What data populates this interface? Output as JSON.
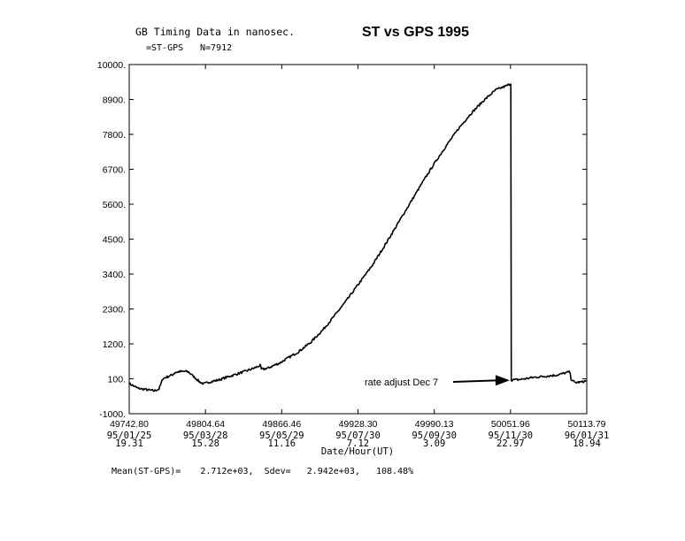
{
  "header": {
    "dataset_title": "GB Timing Data in nanosec.",
    "series_label": "=ST-GPS",
    "count_label": "N=7912",
    "chart_title": "ST vs GPS 1995"
  },
  "footer": {
    "stats_label": "Mean(ST-GPS)=",
    "stats_mean": "2.712e+03,",
    "stats_sdev_label": "Sdev=",
    "stats_sdev": "2.942e+03,",
    "stats_pct": "108.48%"
  },
  "chart_data": {
    "type": "line",
    "title": "ST vs GPS 1995",
    "xlabel": "Date/Hour(UT)",
    "ylabel": "",
    "xlim": [
      49742.8,
      50113.79
    ],
    "ylim": [
      -1000,
      10000
    ],
    "grid": false,
    "y_ticks": [
      "-1000.",
      "100.",
      "1200.",
      "2300.",
      "3400.",
      "4500.",
      "5600.",
      "6700.",
      "7800.",
      "8900.",
      "10000."
    ],
    "y_tick_values": [
      -1000,
      100,
      1200,
      2300,
      3400,
      4500,
      5600,
      6700,
      7800,
      8900,
      10000
    ],
    "x_ticks": [
      {
        "value": 49742.8,
        "mjd": "49742.80",
        "date": "95/01/25",
        "hour": "19.31"
      },
      {
        "value": 49804.64,
        "mjd": "49804.64",
        "date": "95/03/28",
        "hour": "15.28"
      },
      {
        "value": 49866.46,
        "mjd": "49866.46",
        "date": "95/05/29",
        "hour": "11.16"
      },
      {
        "value": 49928.3,
        "mjd": "49928.30",
        "date": "95/07/30",
        "hour": "7.12"
      },
      {
        "value": 49990.13,
        "mjd": "49990.13",
        "date": "95/09/30",
        "hour": "3.09"
      },
      {
        "value": 50051.96,
        "mjd": "50051.96",
        "date": "95/11/30",
        "hour": "22.97"
      },
      {
        "value": 50113.79,
        "mjd": "50113.79",
        "date": "96/01/31",
        "hour": "18.94"
      }
    ],
    "series": [
      {
        "x": [
          49742.8,
          49750,
          49758,
          49763,
          49767,
          49770,
          49771,
          49778,
          49780,
          49785,
          49790,
          49791,
          49800,
          49803,
          49808,
          49815,
          49822,
          49830,
          49838,
          49845,
          49849,
          49850,
          49855,
          49860,
          49865,
          49870,
          49880,
          49890,
          49900,
          49910,
          49920,
          49930,
          49940,
          49950,
          49960,
          49970,
          49980,
          49990,
          50000,
          50010,
          50020,
          50030,
          50040,
          50050,
          50051,
          50052.2,
          50052.6,
          50060,
          50070,
          50080,
          50090,
          50100,
          50101,
          50104,
          50110,
          50113.79
        ],
        "y": [
          -50,
          -200,
          -250,
          -280,
          -220,
          100,
          120,
          230,
          300,
          330,
          330,
          310,
          0,
          -60,
          0,
          60,
          150,
          250,
          350,
          450,
          520,
          400,
          430,
          520,
          600,
          720,
          950,
          1250,
          1650,
          2120,
          2620,
          3150,
          3680,
          4300,
          4950,
          5600,
          6250,
          6870,
          7450,
          7990,
          8460,
          8860,
          9200,
          9350,
          9380,
          9380,
          60,
          80,
          140,
          180,
          220,
          320,
          100,
          -20,
          0,
          40
        ],
        "noise": 35
      }
    ],
    "annotations": [
      {
        "text": "rate adjust Dec 7",
        "arrow_to": [
          50051.3,
          50
        ]
      }
    ]
  }
}
